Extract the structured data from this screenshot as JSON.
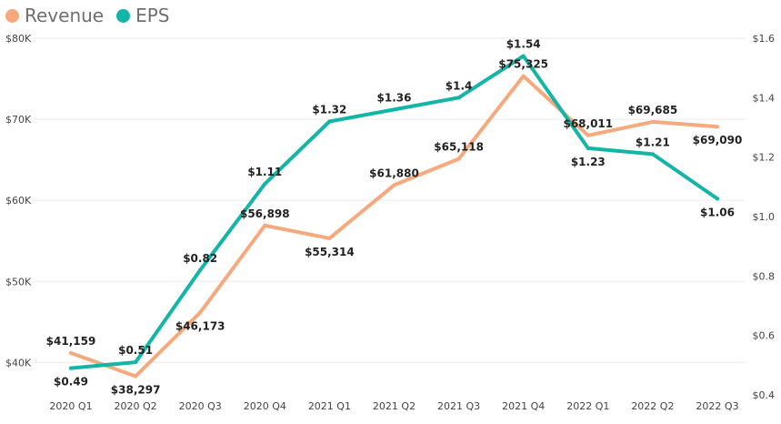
{
  "chart_data": {
    "type": "line",
    "categories": [
      "2020 Q1",
      "2020 Q2",
      "2020 Q3",
      "2020 Q4",
      "2021 Q1",
      "2021 Q2",
      "2021 Q3",
      "2021 Q4",
      "2022 Q1",
      "2022 Q2",
      "2022 Q3"
    ],
    "series": [
      {
        "name": "Revenue",
        "axis": "left",
        "color": "#F7A97E",
        "values": [
          41159,
          38297,
          46173,
          56898,
          55314,
          61880,
          65118,
          75325,
          68011,
          69685,
          69090
        ],
        "labels": [
          "$41,159",
          "$38,297",
          "$46,173",
          "$56,898",
          "$55,314",
          "$61,880",
          "$65,118",
          "$75,325",
          "$68,011",
          "$69,685",
          "$69,090"
        ]
      },
      {
        "name": "EPS",
        "axis": "right",
        "color": "#12B5A6",
        "values": [
          0.49,
          0.51,
          0.82,
          1.11,
          1.32,
          1.36,
          1.4,
          1.54,
          1.23,
          1.21,
          1.06
        ],
        "labels": [
          "$0.49",
          "$0.51",
          "$0.82",
          "$1.11",
          "$1.32",
          "$1.36",
          "$1.4",
          "$1.54",
          "$1.23",
          "$1.21",
          "$1.06"
        ]
      }
    ],
    "y_left": {
      "ylim": [
        36000,
        80000
      ],
      "ticks": [
        40000,
        50000,
        60000,
        70000,
        80000
      ],
      "tick_labels": [
        "$40K",
        "$50K",
        "$60K",
        "$70K",
        "$80K"
      ]
    },
    "y_right": {
      "ylim": [
        0.4,
        1.6
      ],
      "ticks": [
        0.4,
        0.6,
        0.8,
        1.0,
        1.2,
        1.4,
        1.6
      ],
      "tick_labels": [
        "$0.4",
        "$0.6",
        "$0.8",
        "$1.0",
        "$1.2",
        "$1.4",
        "$1.6"
      ]
    },
    "grid": true,
    "legend_position": "top-left"
  }
}
